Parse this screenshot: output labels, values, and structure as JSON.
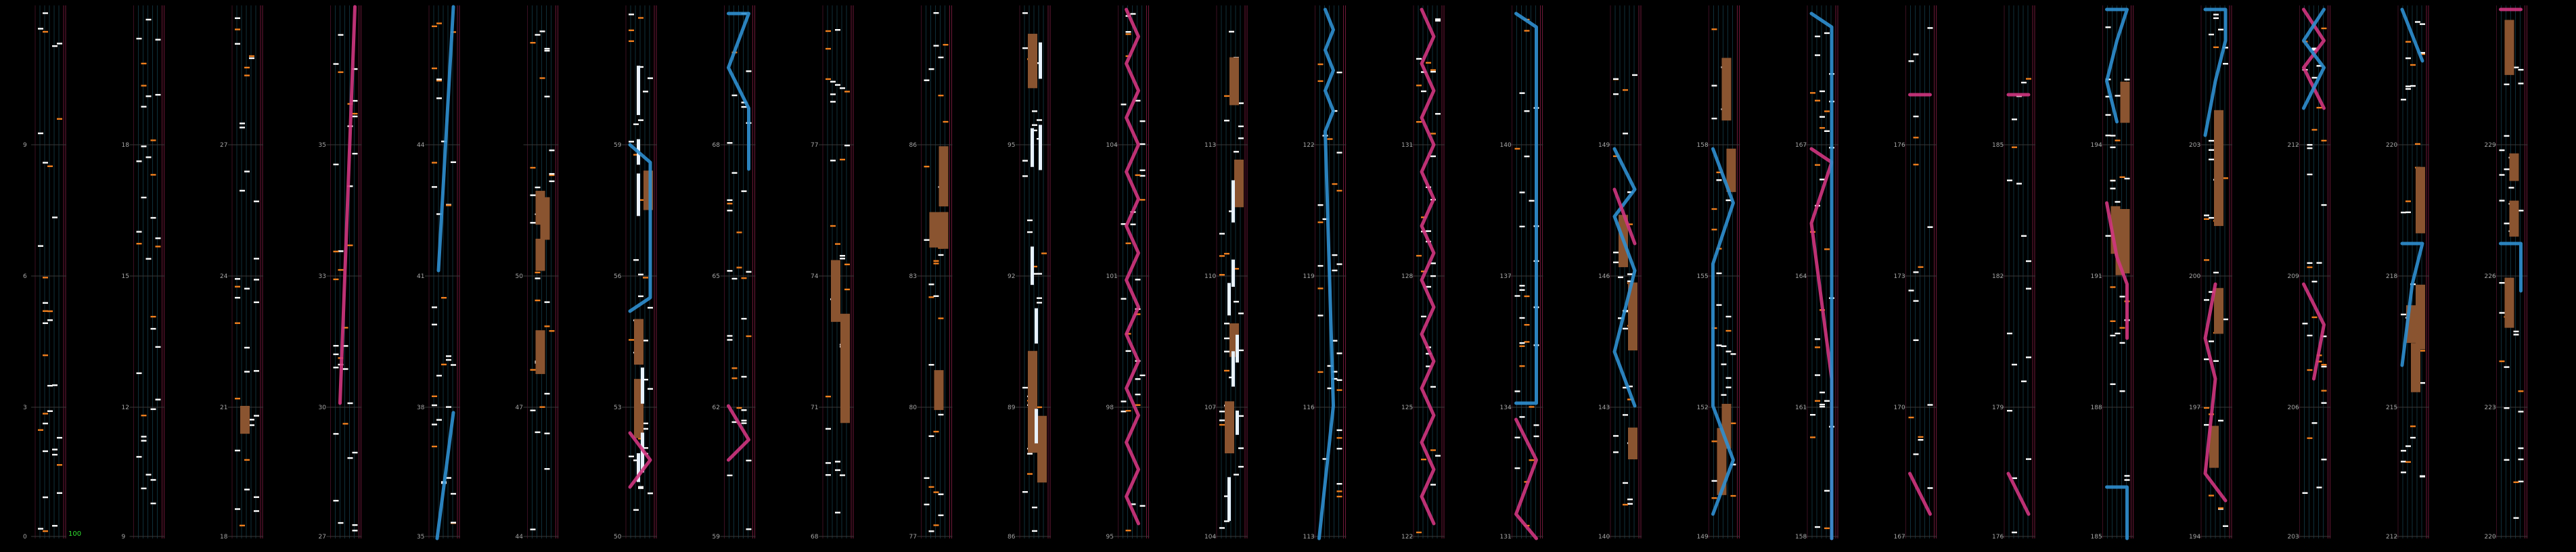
{
  "colors": {
    "background": "#000000",
    "lane_line": "#0f2f3a",
    "lane_edge": "#6e1838",
    "lane_edge2": "#3b0f22",
    "measure_line": "#3a3a3a",
    "note_white": "#ffffff",
    "note_orange": "#f07f1e",
    "long_note_brown": "#8a5430",
    "slide_blue": "#2f8fd0",
    "slide_pink": "#d0357f",
    "label_grey": "#a6a6a6",
    "version_green": "#30e030"
  },
  "chart_data": {
    "type": "rhythm-game-chart-scroll",
    "columns": [
      {
        "labels": [
          "9",
          "6",
          "3",
          "0"
        ],
        "mode": "taps"
      },
      {
        "labels": [
          "18",
          "15",
          "12",
          "9"
        ],
        "mode": "taps"
      },
      {
        "labels": [
          "27",
          "24",
          "21",
          "18"
        ],
        "mode": "taps_holdlow"
      },
      {
        "labels": [
          "35",
          "33",
          "30",
          "27"
        ],
        "mode": "pink_diag"
      },
      {
        "labels": [
          "44",
          "41",
          "38",
          "35"
        ],
        "mode": "blue_diag"
      },
      {
        "labels": [
          "",
          "50",
          "47",
          "44"
        ],
        "mode": "holds"
      },
      {
        "labels": [
          "59",
          "56",
          "53",
          "50"
        ],
        "mode": "holds_blue"
      },
      {
        "labels": [
          "68",
          "65",
          "62",
          "59"
        ],
        "mode": "zigzag"
      },
      {
        "labels": [
          "77",
          "74",
          "71",
          "68"
        ],
        "mode": "holds_taps"
      },
      {
        "labels": [
          "86",
          "83",
          "80",
          "77"
        ],
        "mode": "holds_taps"
      },
      {
        "labels": [
          "95",
          "92",
          "89",
          "86"
        ],
        "mode": "white_stack"
      },
      {
        "labels": [
          "104",
          "101",
          "98",
          "95"
        ],
        "mode": "pink_wave"
      },
      {
        "labels": [
          "113",
          "110",
          "107",
          "104"
        ],
        "mode": "white_dense"
      },
      {
        "labels": [
          "122",
          "119",
          "116",
          "113"
        ],
        "mode": "blue_wave"
      },
      {
        "labels": [
          "131",
          "128",
          "125",
          "122"
        ],
        "mode": "pink_wave2"
      },
      {
        "labels": [
          "140",
          "137",
          "134",
          "131"
        ],
        "mode": "blue_bracket"
      },
      {
        "labels": [
          "149",
          "146",
          "143",
          "140"
        ],
        "mode": "mixed_brown"
      },
      {
        "labels": [
          "158",
          "155",
          "152",
          "149"
        ],
        "mode": "blue_long"
      },
      {
        "labels": [
          "167",
          "164",
          "161",
          "158"
        ],
        "mode": "pink_blue"
      },
      {
        "labels": [
          "176",
          "173",
          "170",
          "167"
        ],
        "mode": "sparse_pink"
      },
      {
        "labels": [
          "185",
          "182",
          "179",
          "176"
        ],
        "mode": "sparse_pink"
      },
      {
        "labels": [
          "194",
          "191",
          "188",
          "185"
        ],
        "mode": "curves_blue"
      },
      {
        "labels": [
          "203",
          "200",
          "197",
          "194"
        ],
        "mode": "curves_pink"
      },
      {
        "labels": [
          "212",
          "209",
          "206",
          "203"
        ],
        "mode": "cross"
      },
      {
        "labels": [
          "220",
          "218",
          "215",
          "212"
        ],
        "mode": "holds_cross"
      },
      {
        "labels": [
          "229",
          "226",
          "223",
          "220"
        ],
        "mode": "pinkend"
      },
      {
        "labels": [
          "",
          "",
          "232",
          "229"
        ],
        "mode": "ending"
      }
    ]
  },
  "footer": {
    "version": "100"
  }
}
